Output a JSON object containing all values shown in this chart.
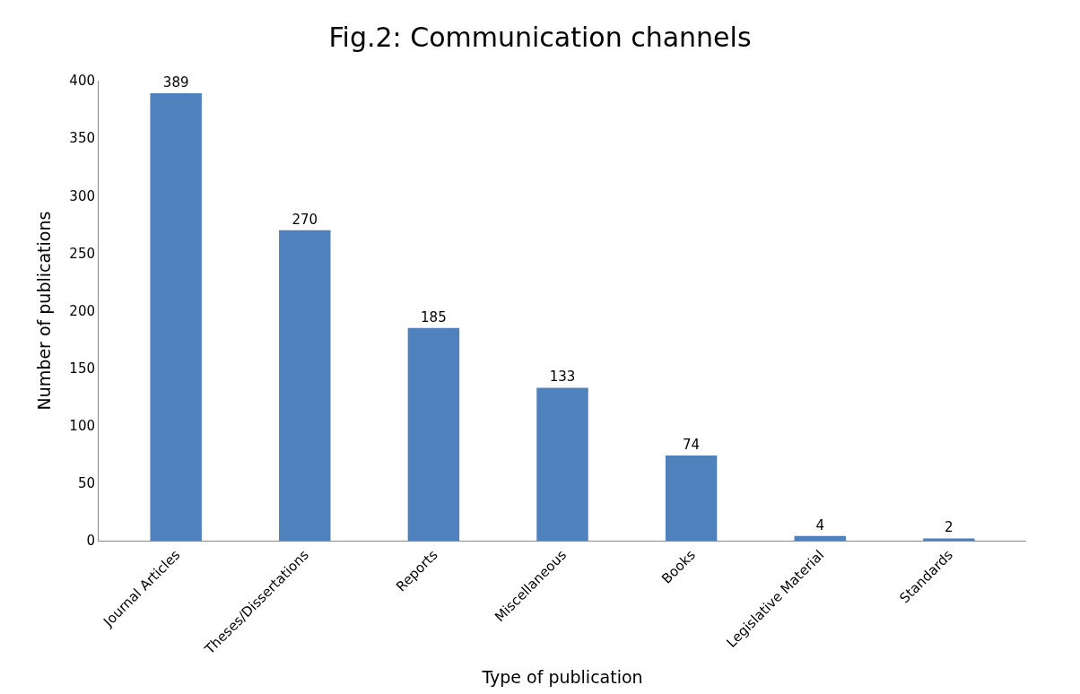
{
  "chart_data": {
    "type": "bar",
    "title": "Fig.2: Communication channels",
    "xlabel": "Type of publication",
    "ylabel": "Number of publications",
    "categories": [
      "Journal Articles",
      "Theses/Dissertations",
      "Reports",
      "Miscellaneous",
      "Books",
      "Legislative Material",
      "Standards"
    ],
    "values": [
      389,
      270,
      185,
      133,
      74,
      4,
      2
    ],
    "color": "#4f81bd",
    "ylim": [
      0,
      400
    ],
    "yticks": [
      0,
      50,
      100,
      150,
      200,
      250,
      300,
      350,
      400
    ],
    "data_labels": true,
    "grid": false
  }
}
